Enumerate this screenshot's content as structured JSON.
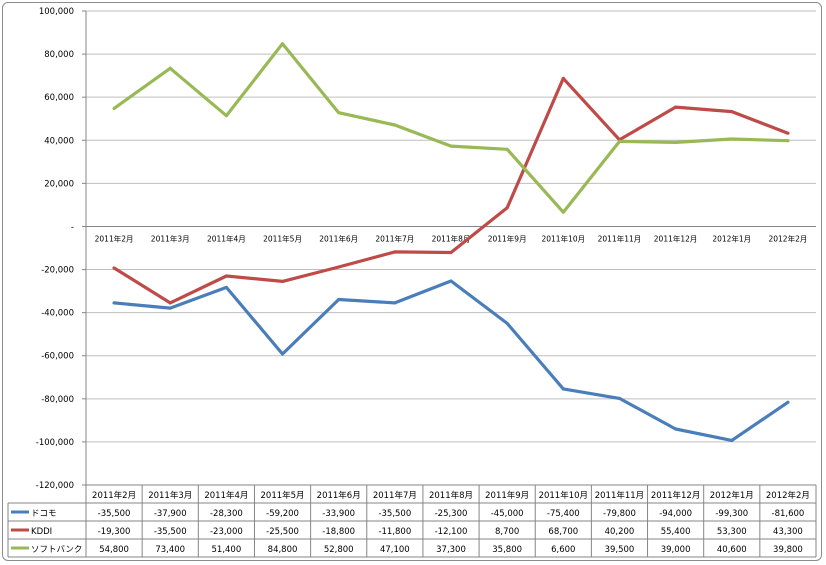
{
  "chart_data": {
    "type": "line",
    "categories": [
      "2011年2月",
      "2011年3月",
      "2011年4月",
      "2011年5月",
      "2011年6月",
      "2011年7月",
      "2011年8月",
      "2011年9月",
      "2011年10月",
      "2011年11月",
      "2011年12月",
      "2012年1月",
      "2012年2月"
    ],
    "series": [
      {
        "name": "ドコモ",
        "color": "#4a7ebb",
        "values": [
          -35500,
          -37900,
          -28300,
          -59200,
          -33900,
          -35500,
          -25300,
          -45000,
          -75400,
          -79800,
          -94000,
          -99300,
          -81600
        ],
        "labels": [
          "-35,500",
          "-37,900",
          "-28,300",
          "-59,200",
          "-33,900",
          "-35,500",
          "-25,300",
          "-45,000",
          "-75,400",
          "-79,800",
          "-94,000",
          "-99,300",
          "-81,600"
        ]
      },
      {
        "name": "KDDI",
        "color": "#be4b48",
        "values": [
          -19300,
          -35500,
          -23000,
          -25500,
          -18800,
          -11800,
          -12100,
          8700,
          68700,
          40200,
          55400,
          53300,
          43300
        ],
        "labels": [
          "-19,300",
          "-35,500",
          "-23,000",
          "-25,500",
          "-18,800",
          "-11,800",
          "-12,100",
          "8,700",
          "68,700",
          "40,200",
          "55,400",
          "53,300",
          "43,300"
        ]
      },
      {
        "name": "ソフトバンク",
        "color": "#98b954",
        "values": [
          54800,
          73400,
          51400,
          84800,
          52800,
          47100,
          37300,
          35800,
          6600,
          39500,
          39000,
          40600,
          39800
        ],
        "labels": [
          "54,800",
          "73,400",
          "51,400",
          "84,800",
          "52,800",
          "47,100",
          "37,300",
          "35,800",
          "6,600",
          "39,500",
          "39,000",
          "40,600",
          "39,800"
        ]
      }
    ],
    "y_ticks": [
      100000,
      80000,
      60000,
      40000,
      20000,
      0,
      -20000,
      -40000,
      -60000,
      -80000,
      -100000,
      -120000
    ],
    "y_tick_labels": [
      "100,000",
      "80,000",
      "60,000",
      "40,000",
      "20,000",
      "-",
      "-20,000",
      "-40,000",
      "-60,000",
      "-80,000",
      "-100,000",
      "-120,000"
    ],
    "ylim": [
      -120000,
      100000
    ],
    "grid": true,
    "legend": "data-table-below"
  }
}
